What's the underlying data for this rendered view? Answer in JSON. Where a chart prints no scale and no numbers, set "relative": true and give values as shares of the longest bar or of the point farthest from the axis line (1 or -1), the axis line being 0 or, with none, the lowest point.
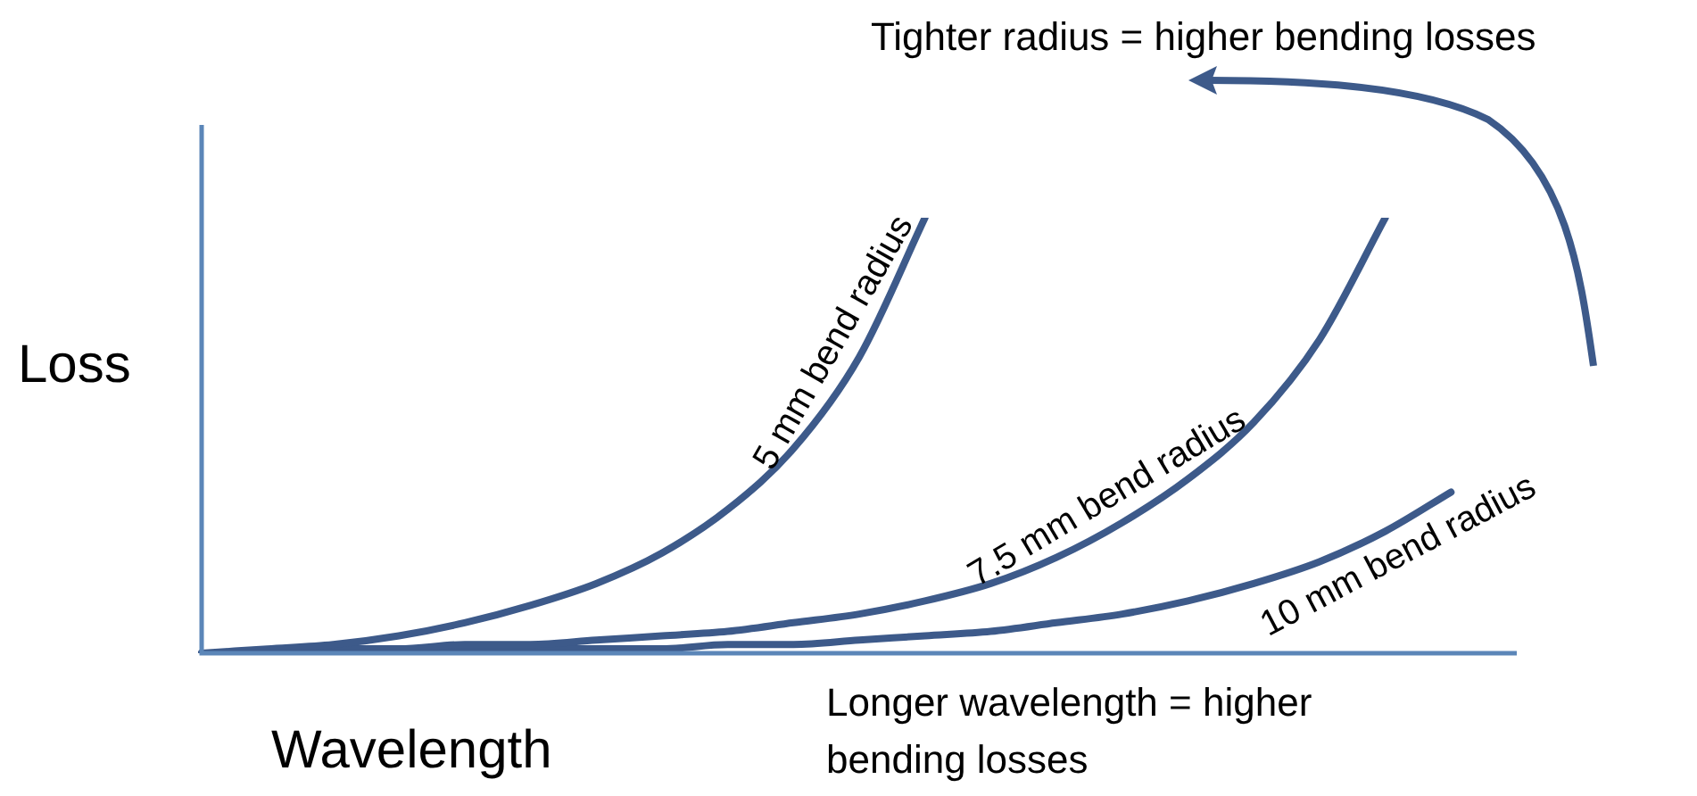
{
  "chart_data": {
    "type": "line",
    "relative": true,
    "xlabel": "Wavelength",
    "ylabel": "Loss",
    "legend": false,
    "marker": "none",
    "line_style": "solid",
    "annotations": [
      "Tighter radius = higher bending losses",
      "Longer wavelength = higher bending losses"
    ],
    "categories": [
      null,
      null,
      null,
      null,
      null,
      null,
      null,
      null,
      null,
      null,
      null,
      null,
      null,
      null,
      null,
      null,
      null,
      null,
      null,
      null,
      null
    ],
    "series": [
      {
        "name": "5 mm bend radius",
        "color": "#3d5a8a",
        "values": [
          0,
          0.01,
          0.02,
          0.04,
          0.07,
          0.11,
          0.16,
          0.23,
          0.33,
          0.47,
          0.68,
          1.0,
          null,
          null,
          null,
          null,
          null,
          null,
          null,
          null,
          null
        ]
      },
      {
        "name": "7.5 mm bend radius",
        "color": "#3d5a8a",
        "values": [
          0,
          0,
          0.01,
          0.01,
          0.02,
          0.02,
          0.03,
          0.04,
          0.05,
          0.07,
          0.09,
          0.12,
          0.16,
          0.22,
          0.3,
          0.4,
          0.53,
          0.72,
          1.0,
          null,
          null
        ]
      },
      {
        "name": "10 mm bend radius",
        "color": "#3d5a8a",
        "values": [
          0,
          0,
          0,
          0,
          0.01,
          0.01,
          0.01,
          0.01,
          0.02,
          0.02,
          0.03,
          0.04,
          0.05,
          0.07,
          0.09,
          0.12,
          0.16,
          0.21,
          0.28,
          0.37,
          null
        ]
      }
    ]
  }
}
